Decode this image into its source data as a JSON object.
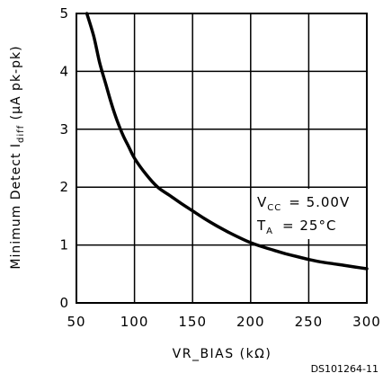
{
  "chart_data": {
    "type": "line",
    "xlabel_parts": [
      "VR",
      "_",
      "BIAS (k",
      "Ω",
      ")"
    ],
    "ylabel_parts": [
      "Minimum Detect I",
      "diff",
      " (",
      "μ",
      "A pk-pk)"
    ],
    "xlim": [
      50,
      300
    ],
    "ylim": [
      0,
      5
    ],
    "xticks": [
      50,
      100,
      150,
      200,
      250,
      300
    ],
    "yticks": [
      0,
      1,
      2,
      3,
      4,
      5
    ],
    "grid": true,
    "series": [
      {
        "x": [
          59,
          65,
          70,
          75,
          80,
          85,
          90,
          95,
          100,
          110,
          120,
          130,
          140,
          150,
          160,
          170,
          180,
          190,
          200,
          210,
          220,
          230,
          240,
          250,
          260,
          270,
          280,
          290,
          300
        ],
        "y": [
          5.0,
          4.6,
          4.15,
          3.8,
          3.45,
          3.15,
          2.9,
          2.7,
          2.5,
          2.22,
          2.0,
          1.86,
          1.72,
          1.59,
          1.46,
          1.34,
          1.23,
          1.13,
          1.04,
          0.97,
          0.91,
          0.85,
          0.8,
          0.75,
          0.71,
          0.68,
          0.65,
          0.62,
          0.59
        ]
      }
    ],
    "annotations": {
      "vcc_sym": "V",
      "vcc_sub": "CC",
      "vcc_value": "= 5.00V",
      "ta_sym": "T",
      "ta_sub": "A",
      "ta_value": "= 25°C"
    },
    "figure_code": "DS101264-11"
  }
}
